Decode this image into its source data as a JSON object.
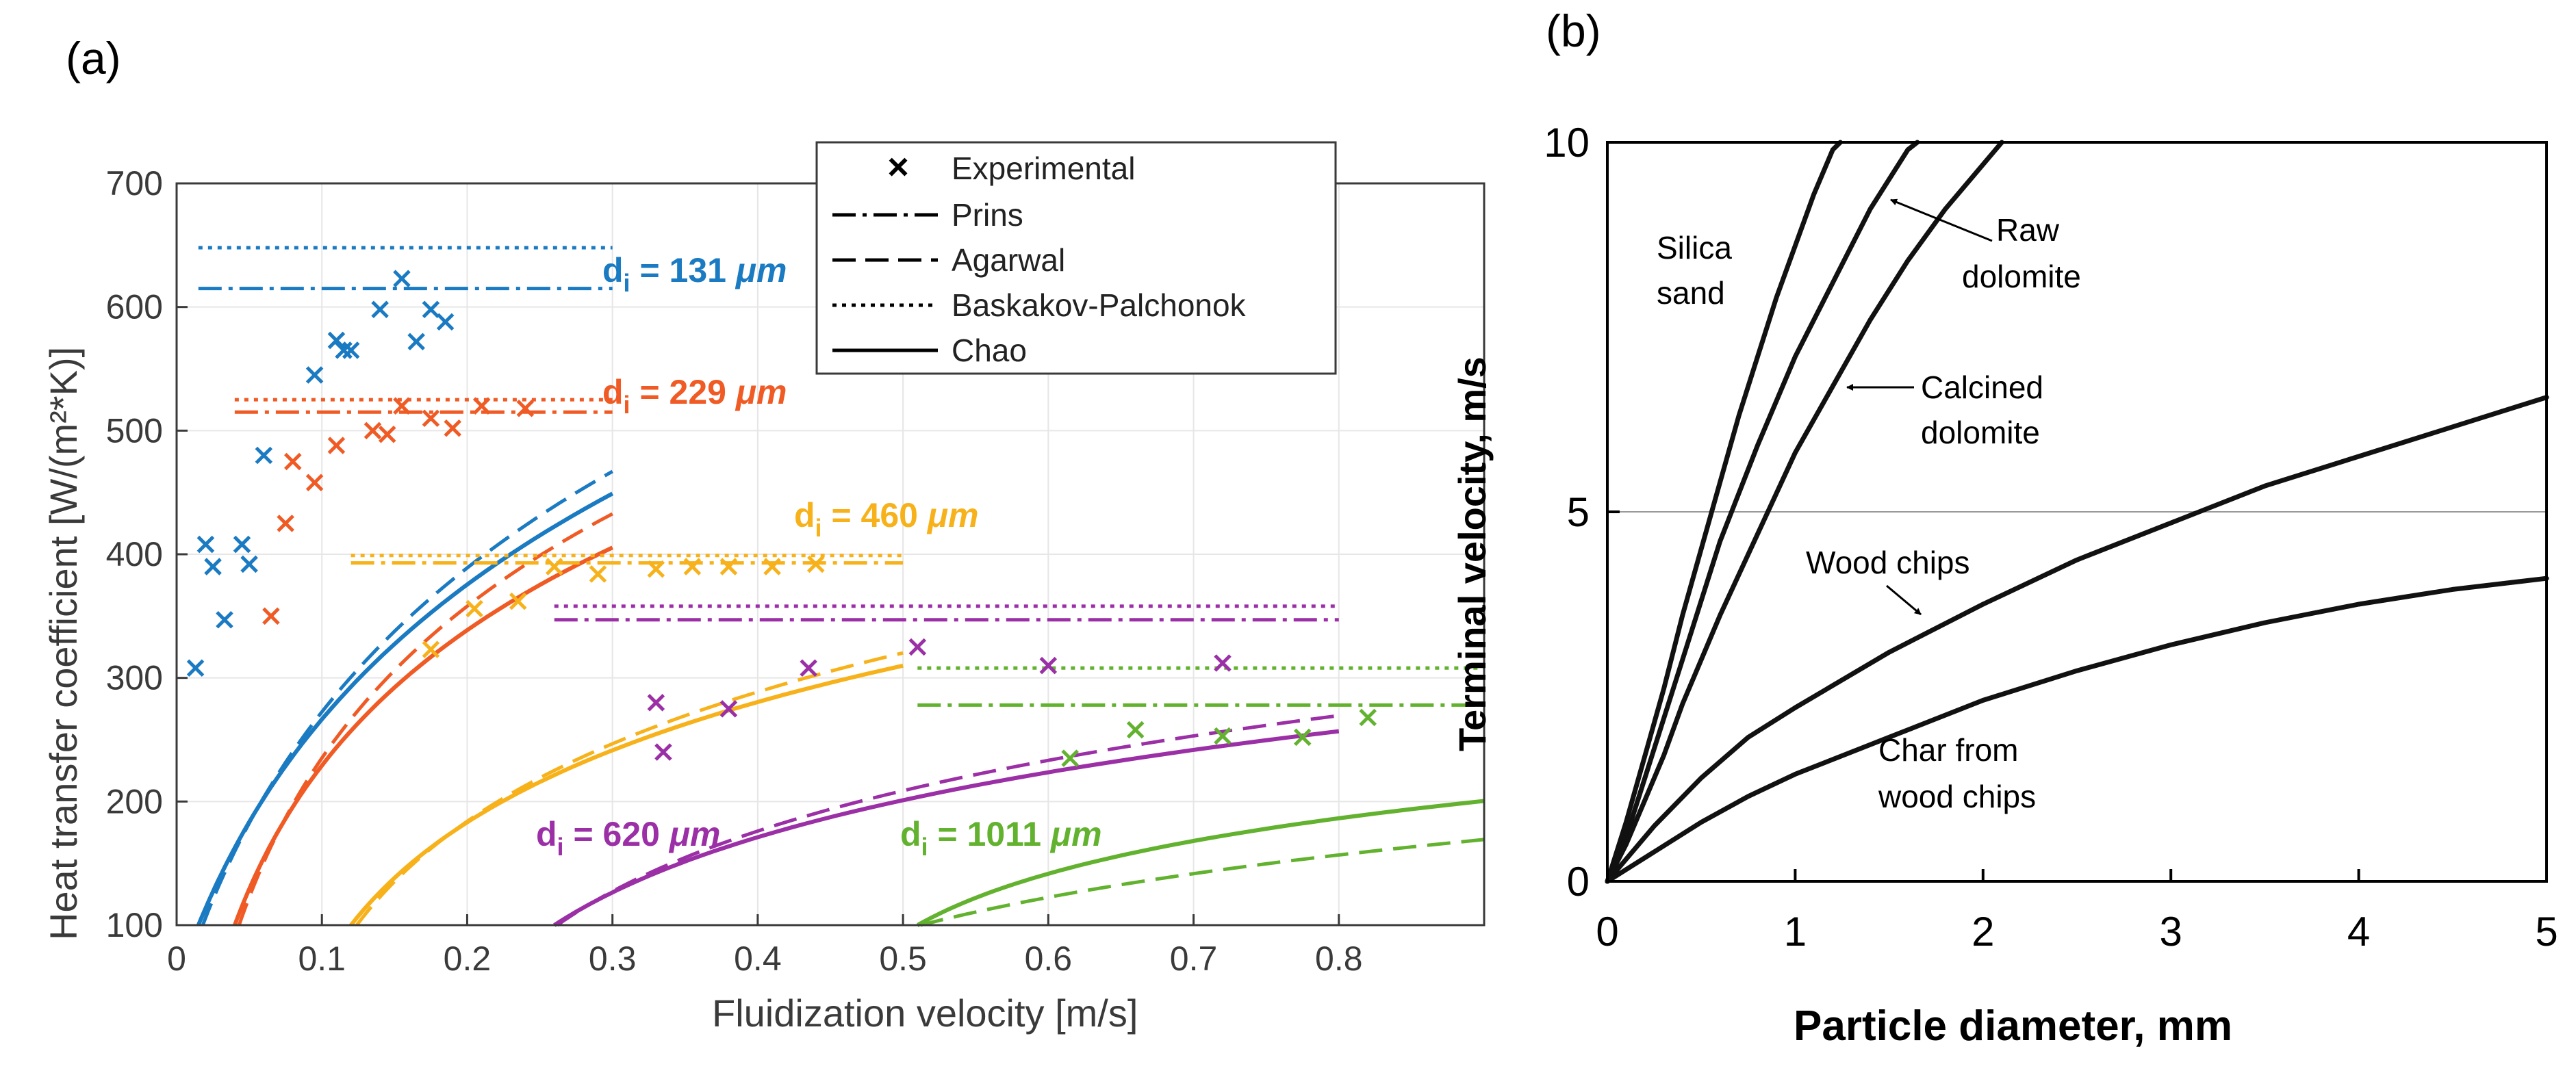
{
  "panels": {
    "a": {
      "label": "(a)"
    },
    "b": {
      "label": "(b)"
    }
  },
  "colors": {
    "c131": "#1a7ac2",
    "c229": "#f05a24",
    "c460": "#f7b21b",
    "c620": "#9b2fa6",
    "c1011": "#62b22f",
    "text": "#222222",
    "axis": "#3a3a3a",
    "grid": "#e6e6e6",
    "gridB": "#9a9a9a"
  },
  "chart_data": [
    {
      "id": "a",
      "type": "line",
      "title": "",
      "xlabel": "Fluidization velocity [m/s]",
      "ylabel": "Heat transfer coefficient [W/(m²*K)]",
      "xlim": [
        0,
        0.9
      ],
      "ylim": [
        100,
        700
      ],
      "xticks": [
        0,
        0.1,
        0.2,
        0.3,
        0.4,
        0.5,
        0.6,
        0.7,
        0.8
      ],
      "xtick_labels": [
        "0",
        "0.1",
        "0.2",
        "0.3",
        "0.4",
        "0.5",
        "0.6",
        "0.7",
        "0.8"
      ],
      "yticks": [
        100,
        200,
        300,
        400,
        500,
        600,
        700
      ],
      "ytick_labels": [
        "100",
        "200",
        "300",
        "400",
        "500",
        "600",
        "700"
      ],
      "grid": true,
      "legend": {
        "placement": "top-right",
        "entries": [
          {
            "symbol": "×",
            "style": "marker",
            "label": "Experimental"
          },
          {
            "style": "dashdot",
            "label": "Prins"
          },
          {
            "style": "dashed",
            "label": "Agarwal"
          },
          {
            "style": "dotted",
            "label": "Baskakov-Palchonok"
          },
          {
            "style": "solid",
            "label": "Chao"
          }
        ]
      },
      "groups": [
        {
          "name": "d_i = 131 µm",
          "label_main": "d",
          "label_sub": "i",
          "label_rest": " = 131 ",
          "label_unit": "μm",
          "color_key": "c131",
          "umf": 0.015,
          "umax": 0.3,
          "prins": 615,
          "baskakov": 648,
          "agarwal": {
            "k": 240,
            "a": 0.018,
            "b": 0.078
          },
          "chao": {
            "k": 230,
            "a": 0.015,
            "b": 0.08
          },
          "experimental": {
            "x": [
              0.013,
              0.02,
              0.025,
              0.033,
              0.045,
              0.05,
              0.06,
              0.095,
              0.11,
              0.115,
              0.12,
              0.14,
              0.155,
              0.165,
              0.175,
              0.185
            ],
            "y": [
              308,
              408,
              390,
              347,
              408,
              392,
              480,
              545,
              573,
              565,
              565,
              598,
              623,
              572,
              598,
              588
            ]
          }
        },
        {
          "name": "d_i = 229 µm",
          "label_main": "d",
          "label_sub": "i",
          "label_rest": " = 229 ",
          "label_unit": "μm",
          "color_key": "c229",
          "umf": 0.04,
          "umax": 0.3,
          "prins": 515,
          "baskakov": 525,
          "agarwal": {
            "k": 195,
            "a": 0.043,
            "b": 0.057
          },
          "chao": {
            "k": 175,
            "a": 0.04,
            "b": 0.055
          },
          "experimental": {
            "x": [
              0.065,
              0.075,
              0.08,
              0.095,
              0.11,
              0.135,
              0.145,
              0.155,
              0.175,
              0.19,
              0.21,
              0.24
            ],
            "y": [
              350,
              425,
              475,
              458,
              488,
              500,
              497,
              520,
              510,
              502,
              520,
              518
            ]
          }
        },
        {
          "name": "d_i = 460 µm",
          "label_main": "d",
          "label_sub": "i",
          "label_rest": " = 460 ",
          "label_unit": "μm",
          "color_key": "c460",
          "umf": 0.12,
          "umax": 0.5,
          "prins": 393,
          "baskakov": 399,
          "agarwal": {
            "k": 128,
            "a": 0.124,
            "b": 0.082
          },
          "chao": {
            "k": 120,
            "a": 0.12,
            "b": 0.08
          },
          "experimental": {
            "x": [
              0.175,
              0.205,
              0.235,
              0.26,
              0.29,
              0.33,
              0.355,
              0.38,
              0.41,
              0.44
            ],
            "y": [
              323,
              356,
              362,
              390,
              384,
              388,
              390,
              390,
              390,
              392
            ]
          }
        },
        {
          "name": "d_i = 620 µm",
          "label_main": "d",
          "label_sub": "i",
          "label_rest": " = 620 ",
          "label_unit": "μm",
          "color_key": "c620",
          "umf": 0.26,
          "umax": 0.8,
          "prins": 347,
          "baskakov": 358,
          "agarwal": {
            "k": 100,
            "a": 0.262,
            "b": 0.121
          },
          "chao": {
            "k": 92,
            "a": 0.26,
            "b": 0.12
          },
          "experimental": {
            "x": [
              0.33,
              0.335,
              0.38,
              0.435,
              0.51,
              0.6,
              0.72
            ],
            "y": [
              280,
              240,
              275,
              308,
              325,
              310,
              312
            ]
          }
        },
        {
          "name": "d_i = 1011 µm",
          "label_main": "d",
          "label_sub": "i",
          "label_rest": " = 1011 ",
          "label_unit": "μm",
          "color_key": "c1011",
          "umf": 0.51,
          "umax": 0.9,
          "prins": 278,
          "baskakov": 308,
          "agarwal": {
            "k": 72,
            "a": 0.512,
            "b": 0.24
          },
          "chao": {
            "k": 60,
            "a": 0.51,
            "b": 0.09
          },
          "experimental": {
            "x": [
              0.615,
              0.66,
              0.72,
              0.775,
              0.82
            ],
            "y": [
              235,
              258,
              253,
              252,
              268
            ]
          }
        }
      ]
    },
    {
      "id": "b",
      "type": "line",
      "title": "",
      "xlabel": "Particle diameter, mm",
      "ylabel": "Terminal velocity, m/s",
      "xlim": [
        0,
        5
      ],
      "ylim": [
        0,
        10
      ],
      "xticks": [
        0,
        1,
        2,
        3,
        4,
        5
      ],
      "xtick_labels": [
        "0",
        "1",
        "2",
        "3",
        "4",
        "5"
      ],
      "yticks": [
        0,
        5,
        10
      ],
      "ytick_labels": [
        "0",
        "5",
        "10"
      ],
      "grid": false,
      "reference_line_y": 5,
      "series": [
        {
          "name": "Silica sand",
          "x": [
            0,
            0.1,
            0.2,
            0.3,
            0.4,
            0.5,
            0.6,
            0.7,
            0.8,
            0.9,
            1.0,
            1.1,
            1.2,
            1.24
          ],
          "y": [
            0,
            0.8,
            1.7,
            2.6,
            3.6,
            4.5,
            5.4,
            6.3,
            7.1,
            7.9,
            8.6,
            9.3,
            9.9,
            10
          ]
        },
        {
          "name": "Raw dolomite",
          "x": [
            0,
            0.1,
            0.2,
            0.3,
            0.4,
            0.5,
            0.6,
            0.8,
            1.0,
            1.2,
            1.4,
            1.6,
            1.65
          ],
          "y": [
            0,
            0.6,
            1.4,
            2.2,
            3.0,
            3.8,
            4.6,
            5.9,
            7.1,
            8.1,
            9.1,
            9.9,
            10
          ]
        },
        {
          "name": "Calcined dolomite",
          "x": [
            0,
            0.1,
            0.2,
            0.3,
            0.4,
            0.6,
            0.8,
            1.0,
            1.2,
            1.4,
            1.6,
            1.8,
            2.0,
            2.1
          ],
          "y": [
            0,
            0.5,
            1.1,
            1.7,
            2.4,
            3.6,
            4.7,
            5.8,
            6.7,
            7.6,
            8.4,
            9.1,
            9.7,
            10
          ]
        },
        {
          "name": "Wood chips",
          "x": [
            0,
            0.1,
            0.25,
            0.5,
            0.75,
            1.0,
            1.5,
            2.0,
            2.5,
            3.0,
            3.5,
            4.0,
            4.5,
            5.0
          ],
          "y": [
            0,
            0.3,
            0.75,
            1.4,
            1.95,
            2.35,
            3.1,
            3.75,
            4.35,
            4.85,
            5.35,
            5.75,
            6.15,
            6.55
          ]
        },
        {
          "name": "Char from wood chips",
          "x": [
            0,
            0.25,
            0.5,
            0.75,
            1.0,
            1.5,
            2.0,
            2.5,
            3.0,
            3.5,
            4.0,
            4.5,
            5.0
          ],
          "y": [
            0,
            0.4,
            0.8,
            1.15,
            1.45,
            1.95,
            2.45,
            2.85,
            3.2,
            3.5,
            3.75,
            3.95,
            4.1
          ]
        }
      ],
      "annotations": [
        {
          "id": "silica",
          "lines": [
            "Silica",
            "sand"
          ]
        },
        {
          "id": "raw",
          "lines": [
            "Raw",
            "dolomite"
          ]
        },
        {
          "id": "calcined",
          "lines": [
            "Calcined",
            "dolomite"
          ]
        },
        {
          "id": "wood",
          "lines": [
            "Wood chips"
          ]
        },
        {
          "id": "char",
          "lines": [
            "Char from",
            "wood chips"
          ]
        }
      ]
    }
  ]
}
